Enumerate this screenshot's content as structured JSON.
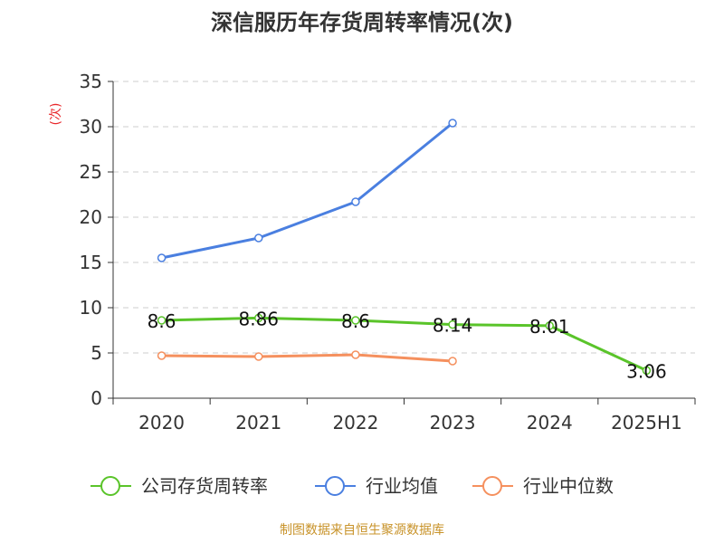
{
  "page": {
    "source_note": "制图数据来自恒生聚源数据库"
  },
  "colors": {
    "company": "#5ac42a",
    "industry_avg": "#4a7fe0",
    "industry_median": "#f5905e",
    "grid": "#cccccc",
    "axis": "#333333"
  },
  "chart_data": {
    "type": "line",
    "title": "深信服历年存货周转率情况(次)",
    "ylabel": "(次)",
    "xlabel": "",
    "categories": [
      "2020",
      "2021",
      "2022",
      "2023",
      "2024",
      "2025H1"
    ],
    "ylim": [
      0,
      35
    ],
    "yticks": [
      0,
      5,
      10,
      15,
      20,
      25,
      30,
      35
    ],
    "grid": true,
    "legend_position": "bottom",
    "series": [
      {
        "name": "公司存货周转率",
        "values": [
          8.6,
          8.86,
          8.6,
          8.14,
          8.01,
          3.06
        ],
        "labels": [
          "8.6",
          "8.86",
          "8.6",
          "8.14",
          "8.01",
          "3.06"
        ],
        "color": "#5ac42a"
      },
      {
        "name": "行业均值",
        "values": [
          15.5,
          17.7,
          21.7,
          30.4,
          null,
          null
        ],
        "color": "#4a7fe0"
      },
      {
        "name": "行业中位数",
        "values": [
          4.7,
          4.6,
          4.8,
          4.1,
          null,
          null
        ],
        "color": "#f5905e"
      }
    ]
  }
}
